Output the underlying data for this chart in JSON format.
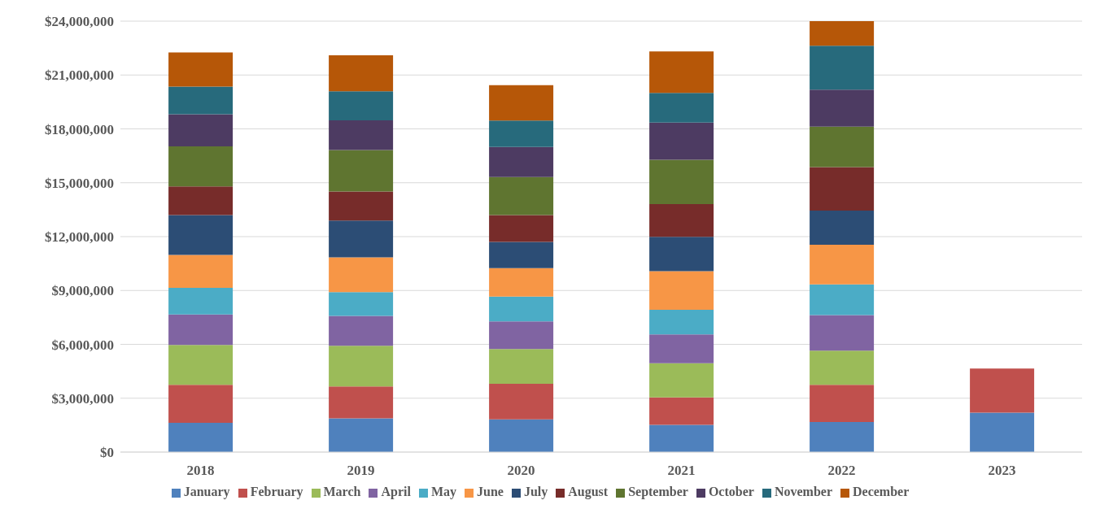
{
  "chart_data": {
    "type": "bar",
    "stacked": true,
    "categories": [
      "2018",
      "2019",
      "2020",
      "2021",
      "2022",
      "2023"
    ],
    "series": [
      {
        "name": "January",
        "color": "#4f81bd",
        "values": [
          1630000,
          1880000,
          1820000,
          1520000,
          1680000,
          2200000
        ]
      },
      {
        "name": "February",
        "color": "#c0504d",
        "values": [
          2120000,
          1780000,
          1980000,
          1520000,
          2070000,
          2450000
        ]
      },
      {
        "name": "March",
        "color": "#9bbb59",
        "values": [
          2220000,
          2260000,
          1940000,
          1910000,
          1900000,
          null
        ]
      },
      {
        "name": "April",
        "color": "#8064a2",
        "values": [
          1690000,
          1670000,
          1540000,
          1600000,
          1980000,
          null
        ]
      },
      {
        "name": "May",
        "color": "#4bacc6",
        "values": [
          1490000,
          1320000,
          1380000,
          1380000,
          1710000,
          null
        ]
      },
      {
        "name": "June",
        "color": "#f79646",
        "values": [
          1830000,
          1940000,
          1580000,
          2150000,
          2210000,
          null
        ]
      },
      {
        "name": "July",
        "color": "#2c4d75",
        "values": [
          2220000,
          2050000,
          1470000,
          1910000,
          1900000,
          null
        ]
      },
      {
        "name": "August",
        "color": "#772c2a",
        "values": [
          1600000,
          1610000,
          1490000,
          1820000,
          2420000,
          null
        ]
      },
      {
        "name": "September",
        "color": "#5f7530",
        "values": [
          2230000,
          2310000,
          2120000,
          2470000,
          2250000,
          null
        ]
      },
      {
        "name": "October",
        "color": "#4d3b62",
        "values": [
          1780000,
          1660000,
          1670000,
          2070000,
          2070000,
          null
        ]
      },
      {
        "name": "November",
        "color": "#276a7c",
        "values": [
          1540000,
          1610000,
          1470000,
          1650000,
          2440000,
          null
        ]
      },
      {
        "name": "December",
        "color": "#b65708",
        "values": [
          1910000,
          2010000,
          1970000,
          2310000,
          1370000,
          null
        ]
      }
    ],
    "ylim": [
      0,
      24000000
    ],
    "yticks": [
      {
        "value": 0,
        "label": "$0"
      },
      {
        "value": 3000000,
        "label": "$3,000,000"
      },
      {
        "value": 6000000,
        "label": "$6,000,000"
      },
      {
        "value": 9000000,
        "label": "$9,000,000"
      },
      {
        "value": 12000000,
        "label": "$12,000,000"
      },
      {
        "value": 15000000,
        "label": "$15,000,000"
      },
      {
        "value": 18000000,
        "label": "$18,000,000"
      },
      {
        "value": 21000000,
        "label": "$21,000,000"
      },
      {
        "value": 24000000,
        "label": "$24,000,000"
      }
    ],
    "grid": "y",
    "legend": "bottom"
  }
}
